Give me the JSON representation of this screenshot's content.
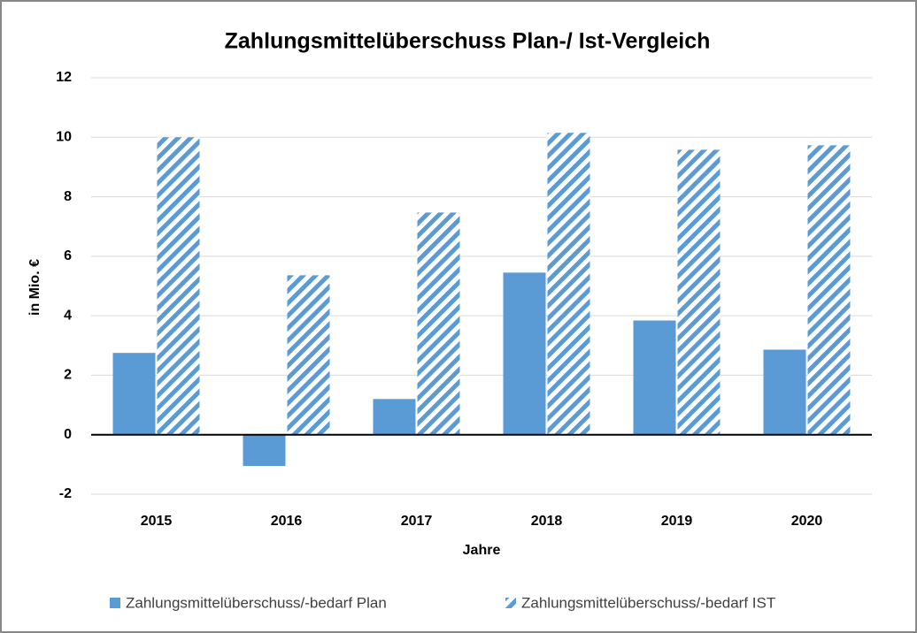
{
  "chart_data": {
    "type": "bar",
    "title": "Zahlungsmittelüberschuss Plan-/ Ist-Vergleich",
    "x_label": "Jahre",
    "y_label": "in Mio. €",
    "categories": [
      "2015",
      "2016",
      "2017",
      "2018",
      "2019",
      "2020"
    ],
    "series": [
      {
        "name": "Zahlungsmittelüberschuss/-bedarf Plan",
        "color": "#5b9bd5",
        "hatch": false,
        "values": [
          2.75,
          -1.05,
          1.2,
          5.45,
          3.84,
          2.86
        ]
      },
      {
        "name": "Zahlungsmittelüberschuss/-bedarf IST",
        "color": "#5b9bd5",
        "hatch": true,
        "values": [
          10.0,
          5.36,
          7.47,
          10.15,
          9.58,
          9.73
        ]
      }
    ],
    "ylim": [
      -2,
      12
    ],
    "yticks": [
      -2,
      0,
      2,
      4,
      6,
      8,
      10,
      12
    ],
    "grid": true,
    "legend": "bottom"
  }
}
